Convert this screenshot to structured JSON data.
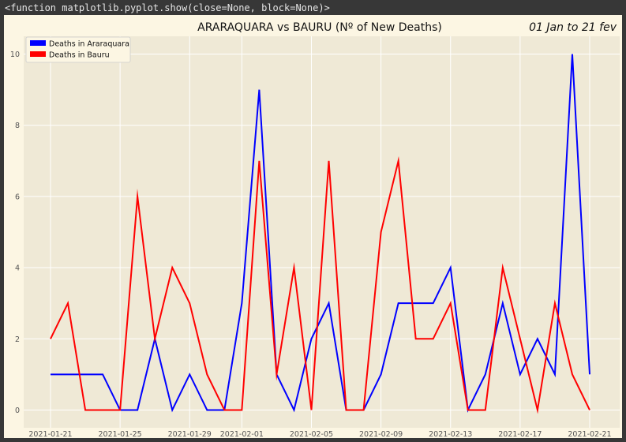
{
  "output": {
    "repr_text": "<function matplotlib.pyplot.show(close=None, block=None)>"
  },
  "chart_data": {
    "type": "line",
    "title": "ARARAQUARA vs BAURU (Nº of New Deaths)",
    "title_right": "01 Jan to 21 fev",
    "xlabel": "",
    "ylabel": "",
    "x": [
      "2021-01-21",
      "2021-01-22",
      "2021-01-23",
      "2021-01-24",
      "2021-01-25",
      "2021-01-26",
      "2021-01-27",
      "2021-01-28",
      "2021-01-29",
      "2021-01-30",
      "2021-01-31",
      "2021-02-01",
      "2021-02-02",
      "2021-02-03",
      "2021-02-04",
      "2021-02-05",
      "2021-02-06",
      "2021-02-07",
      "2021-02-08",
      "2021-02-09",
      "2021-02-10",
      "2021-02-11",
      "2021-02-12",
      "2021-02-13",
      "2021-02-14",
      "2021-02-15",
      "2021-02-16",
      "2021-02-17",
      "2021-02-18",
      "2021-02-19",
      "2021-02-20",
      "2021-02-21"
    ],
    "xticks": [
      "2021-01-21",
      "2021-01-25",
      "2021-01-29",
      "2021-02-01",
      "2021-02-05",
      "2021-02-09",
      "2021-02-13",
      "2021-02-17",
      "2021-02-21"
    ],
    "yticks": [
      0,
      2,
      4,
      6,
      8,
      10
    ],
    "ylim": [
      -0.5,
      10.5
    ],
    "grid": true,
    "legend_position": "top-left",
    "series": [
      {
        "name": "Deaths in Araraquara",
        "color": "#0000ff",
        "values": [
          1,
          1,
          1,
          1,
          0,
          0,
          2,
          0,
          1,
          0,
          0,
          3,
          9,
          1,
          0,
          2,
          3,
          0,
          0,
          1,
          3,
          3,
          3,
          4,
          0,
          1,
          3,
          1,
          2,
          1,
          10,
          1
        ]
      },
      {
        "name": "Deaths in Bauru",
        "color": "#ff0000",
        "values": [
          2,
          3,
          0,
          0,
          0,
          6,
          2,
          4,
          3,
          1,
          0,
          0,
          7,
          1,
          4,
          0,
          7,
          0,
          0,
          5,
          7,
          2,
          2,
          3,
          0,
          0,
          4,
          2,
          0,
          3,
          1,
          0
        ]
      }
    ]
  }
}
